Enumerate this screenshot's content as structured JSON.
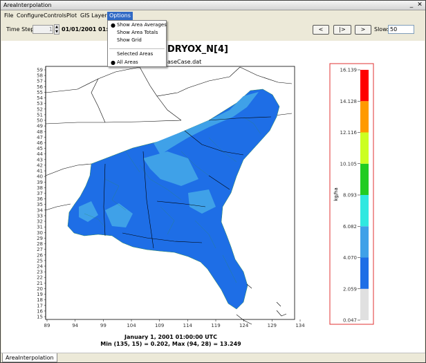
{
  "window": {
    "title": "AreaInterpolation",
    "minimize_glyph": "_",
    "close_glyph": "✕"
  },
  "menubar": {
    "items": [
      "File",
      "Configure",
      "Controls",
      "Plot",
      "GIS Layers",
      "Options"
    ],
    "open_index": 5
  },
  "options_menu": {
    "items": [
      {
        "label": "Show Area Averages",
        "checked": true
      },
      {
        "label": "Show Area Totals",
        "checked": false
      },
      {
        "label": "Show Grid",
        "checked": false
      },
      {
        "label": "Selected Areas",
        "checked": false
      },
      {
        "label": "All Areas",
        "checked": true
      }
    ],
    "bullet": "●"
  },
  "toolbar": {
    "time_step_label": "Time Step:",
    "time_step_value": "1",
    "timestamp": "01/01/2001 01:00:",
    "btn_prev": "<",
    "btn_play": "|>",
    "btn_next": ">",
    "slow_label": "Slow:",
    "slow_value": "50"
  },
  "map": {
    "title": "DRYOX_N[4]",
    "subtitle": "aseCase.dat",
    "footer_date": "January 1, 2001 01:00:00 UTC",
    "footer_stats": "Min (135, 15) = 0.202, Max (94, 28) = 13.249",
    "x_ticks": [
      "89",
      "94",
      "99",
      "104",
      "109",
      "114",
      "119",
      "124",
      "129",
      "134"
    ],
    "y_ticks": [
      "15",
      "16",
      "17",
      "18",
      "19",
      "20",
      "21",
      "22",
      "23",
      "24",
      "25",
      "26",
      "27",
      "28",
      "29",
      "30",
      "31",
      "32",
      "33",
      "34",
      "35",
      "36",
      "37",
      "38",
      "39",
      "40",
      "41",
      "42",
      "43",
      "44",
      "45",
      "46",
      "47",
      "48",
      "49",
      "50",
      "51",
      "52",
      "53",
      "54",
      "55",
      "56",
      "57",
      "58",
      "59"
    ],
    "colors": {
      "main_fill": "#1e6ee6",
      "light_fill": "#3fa1e8",
      "boundary": "#000000",
      "grid_line": "#2e8b57"
    }
  },
  "legend": {
    "unit": "kg/ha",
    "ticks": [
      "16.139",
      "14.128",
      "12.116",
      "10.105",
      "8.093",
      "6.082",
      "4.070",
      "2.059",
      "0.047"
    ],
    "colors": [
      "#e0e0e0",
      "#1e6ee6",
      "#3fa1e8",
      "#30e8e0",
      "#22cc22",
      "#ccff22",
      "#ff9a00",
      "#ff0000"
    ],
    "border_color": "#e03030"
  },
  "statusbar": {
    "tab_label": "AreaInterpolation"
  }
}
